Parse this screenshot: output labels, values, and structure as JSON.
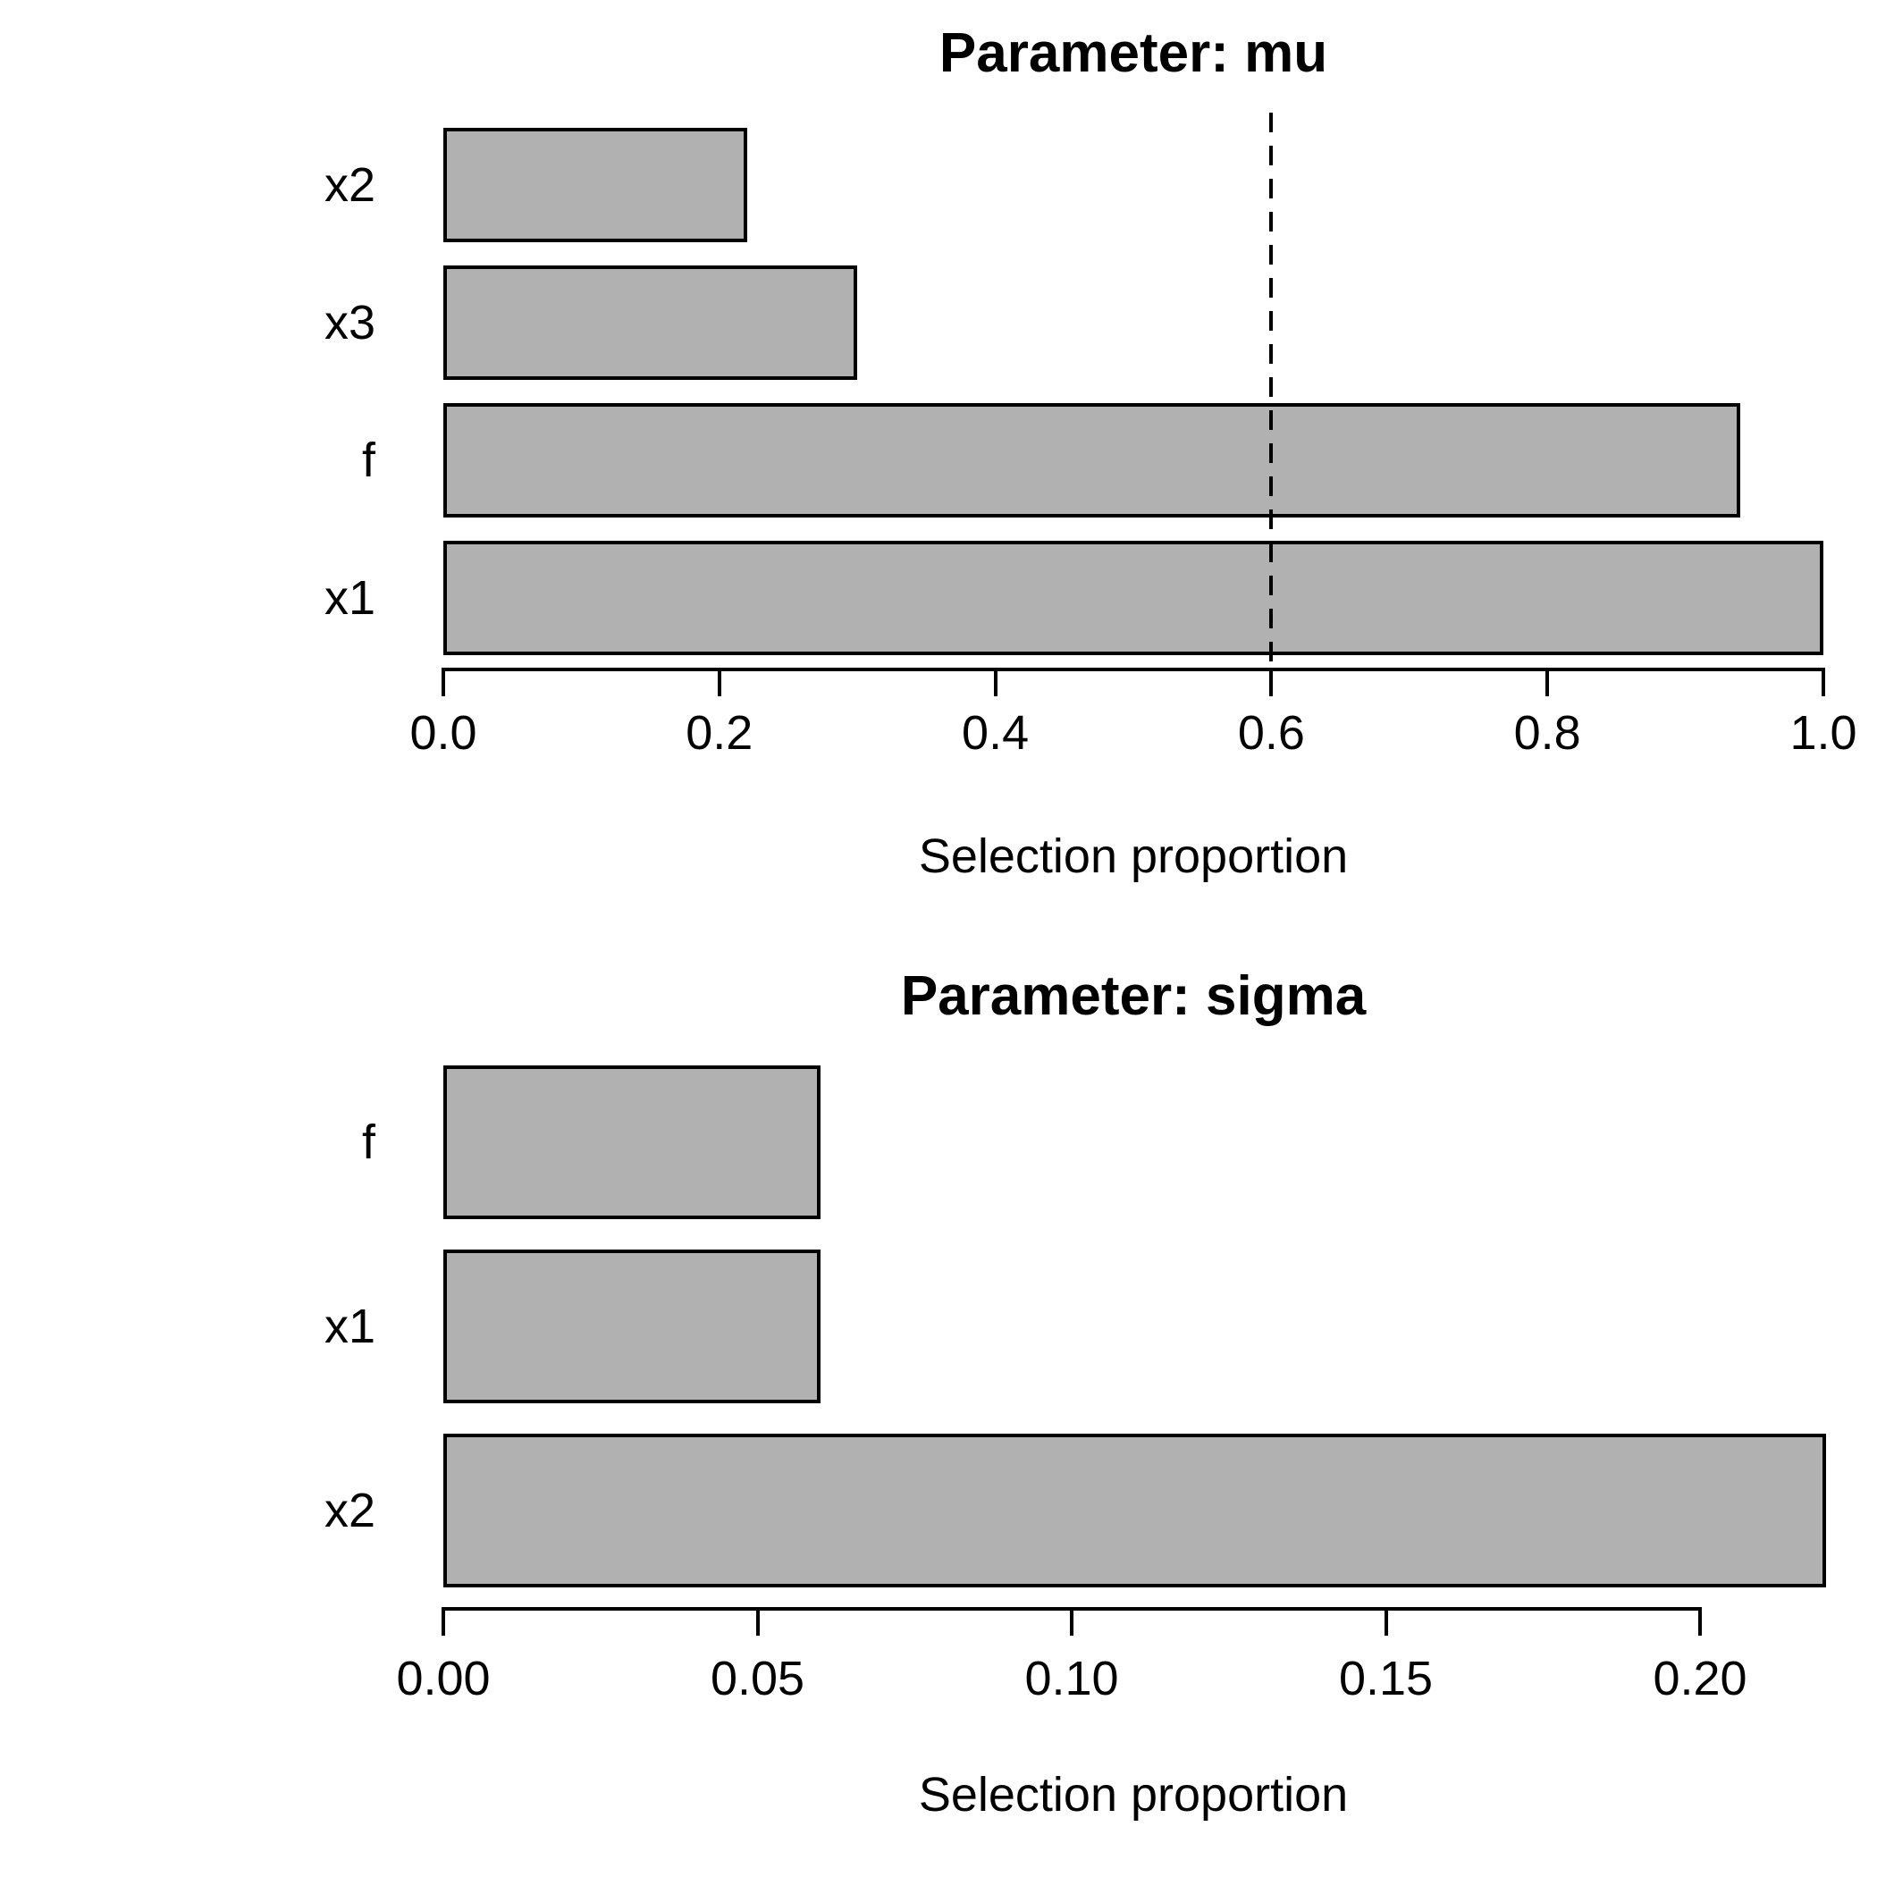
{
  "figure": {
    "background": "#ffffff",
    "bar_fill": "#b1b1b1",
    "bar_border": "#000000",
    "axis_color": "#000000",
    "text_color": "#000000"
  },
  "chart_data": [
    {
      "type": "bar",
      "orientation": "horizontal",
      "title": "Parameter: mu",
      "categories": [
        "x2",
        "x3",
        "f",
        "x1"
      ],
      "values": [
        0.22,
        0.3,
        0.94,
        1.0
      ],
      "xlabel": "Selection proportion",
      "xlim": [
        0.0,
        1.0
      ],
      "xticks": [
        0.0,
        0.2,
        0.4,
        0.6,
        0.8,
        1.0
      ],
      "xtick_labels": [
        "0.0",
        "0.2",
        "0.4",
        "0.6",
        "0.8",
        "1.0"
      ],
      "threshold": 0.6,
      "threshold_style": "dashed",
      "grid": "off",
      "legend": "none"
    },
    {
      "type": "bar",
      "orientation": "horizontal",
      "title": "Parameter: sigma",
      "categories": [
        "f",
        "x1",
        "x2"
      ],
      "values": [
        0.06,
        0.06,
        0.22
      ],
      "xlabel": "Selection proportion",
      "xlim": [
        0.0,
        0.22
      ],
      "xticks": [
        0.0,
        0.05,
        0.1,
        0.15,
        0.2
      ],
      "xtick_labels": [
        "0.00",
        "0.05",
        "0.10",
        "0.15",
        "0.20"
      ],
      "threshold": null,
      "threshold_style": "none",
      "grid": "off",
      "legend": "none"
    }
  ]
}
